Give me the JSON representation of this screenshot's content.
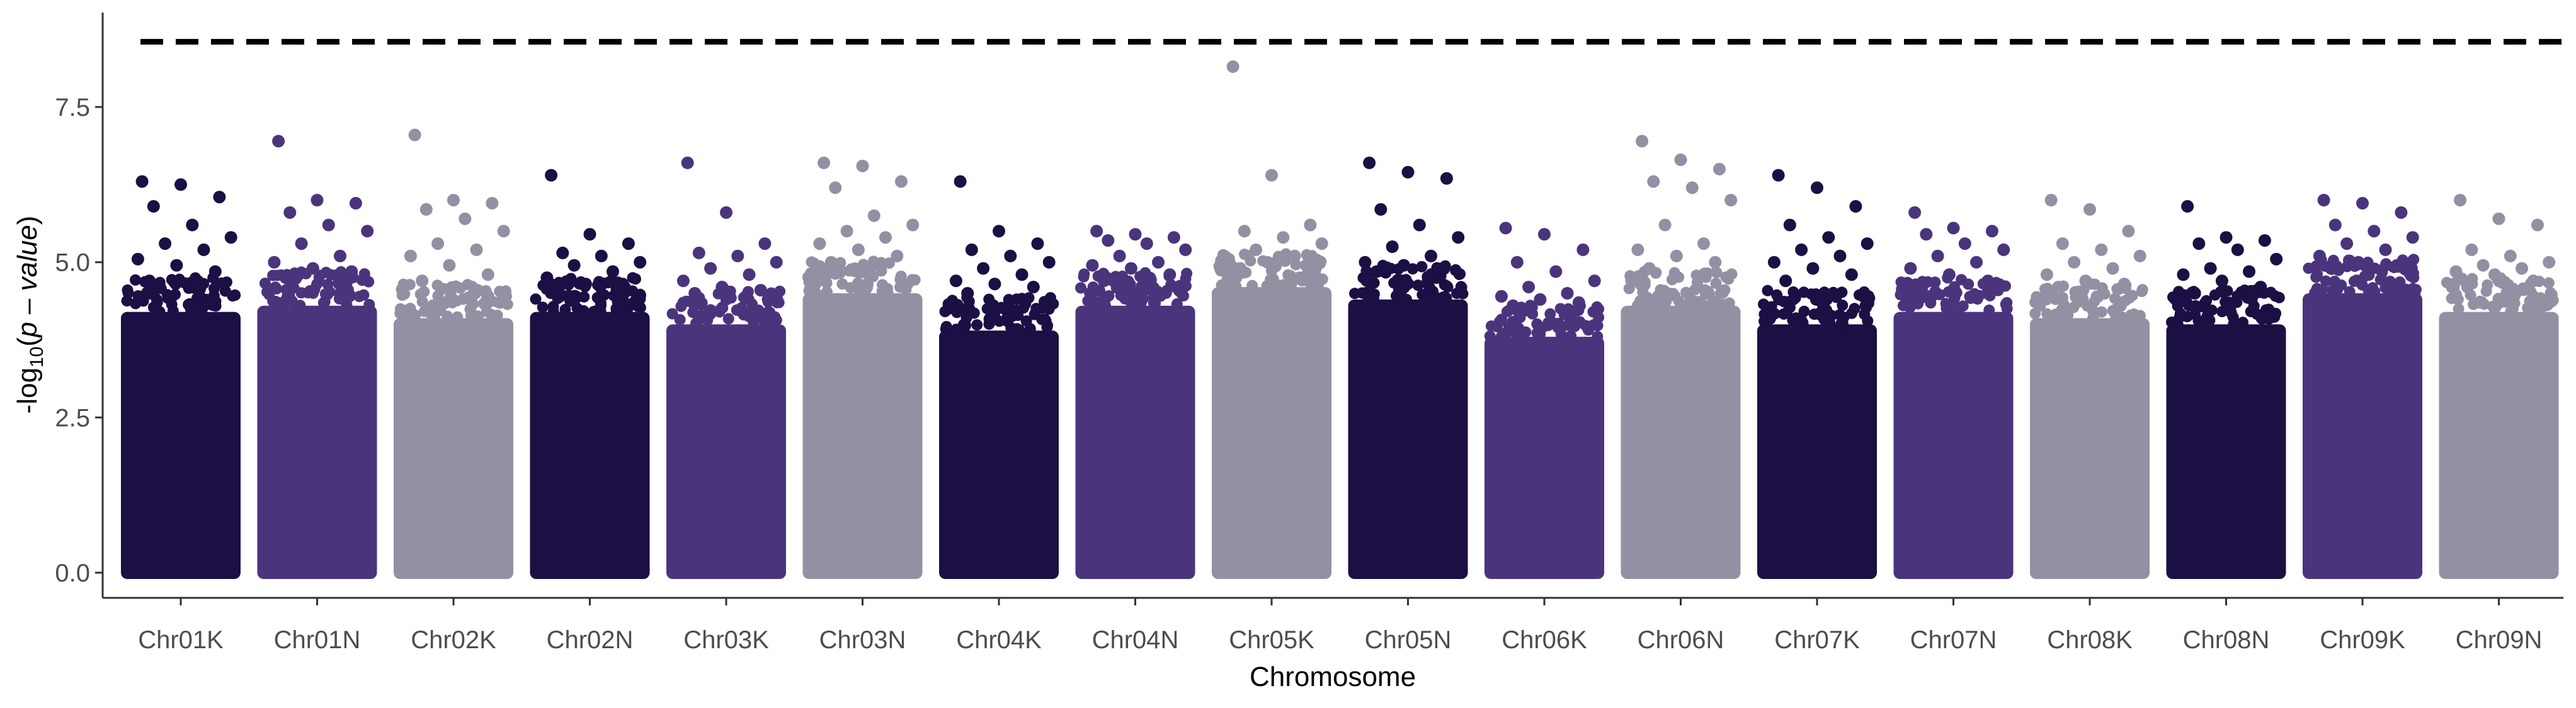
{
  "chart_data": {
    "type": "scatter",
    "subtype": "manhattan",
    "title": "",
    "xlabel": "Chromosome",
    "ylabel": {
      "prefix": "-log",
      "subscript": "10",
      "open": "(",
      "italic": "p – value",
      "close": ")"
    },
    "ylim": [
      0,
      8.6
    ],
    "yticks": [
      0.0,
      2.5,
      5.0,
      7.5
    ],
    "ytick_labels": [
      "0.0",
      "2.5",
      "5.0",
      "7.5"
    ],
    "threshold": 8.55,
    "threshold_style": "dashed",
    "grid": false,
    "legend": "none",
    "palette": [
      "#1b0f44",
      "#4a357d",
      "#9490a3"
    ],
    "chromosomes": [
      {
        "name": "Chr01K",
        "color": "#1b0f44",
        "body": 4.2,
        "top_points": [
          6.3,
          6.25,
          6.05,
          5.9,
          5.6,
          5.4,
          5.3,
          5.2,
          5.05,
          4.95,
          4.85,
          4.7
        ]
      },
      {
        "name": "Chr01N",
        "color": "#4a357d",
        "body": 4.3,
        "top_points": [
          6.95,
          6.0,
          5.95,
          5.8,
          5.6,
          5.5,
          5.3,
          5.1,
          5.0,
          4.9,
          4.85,
          4.75
        ]
      },
      {
        "name": "Chr02K",
        "color": "#9490a3",
        "body": 4.1,
        "top_points": [
          7.05,
          6.0,
          5.95,
          5.85,
          5.7,
          5.5,
          5.3,
          5.2,
          5.1,
          4.95,
          4.8,
          4.7
        ]
      },
      {
        "name": "Chr02N",
        "color": "#1b0f44",
        "body": 4.2,
        "top_points": [
          6.4,
          5.45,
          5.3,
          5.15,
          5.1,
          5.0,
          4.95,
          4.85,
          4.75,
          4.65,
          4.6,
          4.55
        ]
      },
      {
        "name": "Chr03K",
        "color": "#4a357d",
        "body": 4.0,
        "top_points": [
          6.6,
          5.8,
          5.3,
          5.15,
          5.1,
          5.0,
          4.9,
          4.8,
          4.7,
          4.6,
          4.55,
          4.5
        ]
      },
      {
        "name": "Chr03N",
        "color": "#9490a3",
        "body": 4.5,
        "top_points": [
          6.6,
          6.55,
          6.3,
          6.2,
          5.75,
          5.6,
          5.5,
          5.4,
          5.3,
          5.2,
          5.1,
          5.0
        ]
      },
      {
        "name": "Chr04K",
        "color": "#1b0f44",
        "body": 3.9,
        "top_points": [
          6.3,
          5.5,
          5.3,
          5.2,
          5.1,
          5.0,
          4.9,
          4.8,
          4.7,
          4.65,
          4.6,
          4.5
        ]
      },
      {
        "name": "Chr04N",
        "color": "#4a357d",
        "body": 4.3,
        "top_points": [
          5.5,
          5.45,
          5.4,
          5.35,
          5.3,
          5.2,
          5.1,
          5.0,
          4.95,
          4.9,
          4.8,
          4.7
        ]
      },
      {
        "name": "Chr05K",
        "color": "#9490a3",
        "body": 4.6,
        "top_points": [
          8.15,
          6.4,
          5.6,
          5.5,
          5.4,
          5.3,
          5.2,
          5.1,
          5.05,
          5.0,
          4.95,
          4.9
        ]
      },
      {
        "name": "Chr05N",
        "color": "#1b0f44",
        "body": 4.4,
        "top_points": [
          6.6,
          6.45,
          6.35,
          5.85,
          5.6,
          5.4,
          5.25,
          5.1,
          5.0,
          4.95,
          4.9,
          4.85
        ]
      },
      {
        "name": "Chr06K",
        "color": "#4a357d",
        "body": 3.8,
        "top_points": [
          5.55,
          5.45,
          5.2,
          5.0,
          4.85,
          4.7,
          4.6,
          4.5,
          4.45,
          4.4,
          4.35,
          4.3
        ]
      },
      {
        "name": "Chr06N",
        "color": "#9490a3",
        "body": 4.3,
        "top_points": [
          6.95,
          6.65,
          6.5,
          6.3,
          6.2,
          6.0,
          5.6,
          5.3,
          5.2,
          5.1,
          5.0,
          4.9
        ]
      },
      {
        "name": "Chr07K",
        "color": "#1b0f44",
        "body": 4.0,
        "top_points": [
          6.4,
          6.2,
          5.9,
          5.6,
          5.4,
          5.3,
          5.2,
          5.1,
          5.0,
          4.9,
          4.8,
          4.7
        ]
      },
      {
        "name": "Chr07N",
        "color": "#4a357d",
        "body": 4.2,
        "top_points": [
          5.8,
          5.55,
          5.5,
          5.45,
          5.3,
          5.2,
          5.1,
          5.0,
          4.9,
          4.8,
          4.7,
          4.6
        ]
      },
      {
        "name": "Chr08K",
        "color": "#9490a3",
        "body": 4.1,
        "top_points": [
          6.0,
          5.85,
          5.5,
          5.3,
          5.2,
          5.1,
          5.0,
          4.9,
          4.8,
          4.7,
          4.65,
          4.6
        ]
      },
      {
        "name": "Chr08N",
        "color": "#1b0f44",
        "body": 4.0,
        "top_points": [
          5.9,
          5.4,
          5.35,
          5.3,
          5.2,
          5.05,
          4.9,
          4.85,
          4.8,
          4.7,
          4.6,
          4.5
        ]
      },
      {
        "name": "Chr09K",
        "color": "#4a357d",
        "body": 4.5,
        "top_points": [
          6.0,
          5.95,
          5.8,
          5.6,
          5.5,
          5.4,
          5.3,
          5.2,
          5.1,
          5.0,
          4.95,
          4.9
        ]
      },
      {
        "name": "Chr09N",
        "color": "#9490a3",
        "body": 4.2,
        "top_points": [
          6.0,
          5.7,
          5.6,
          5.2,
          5.1,
          5.0,
          4.95,
          4.9,
          4.85,
          4.8,
          4.7,
          4.6
        ]
      }
    ]
  }
}
